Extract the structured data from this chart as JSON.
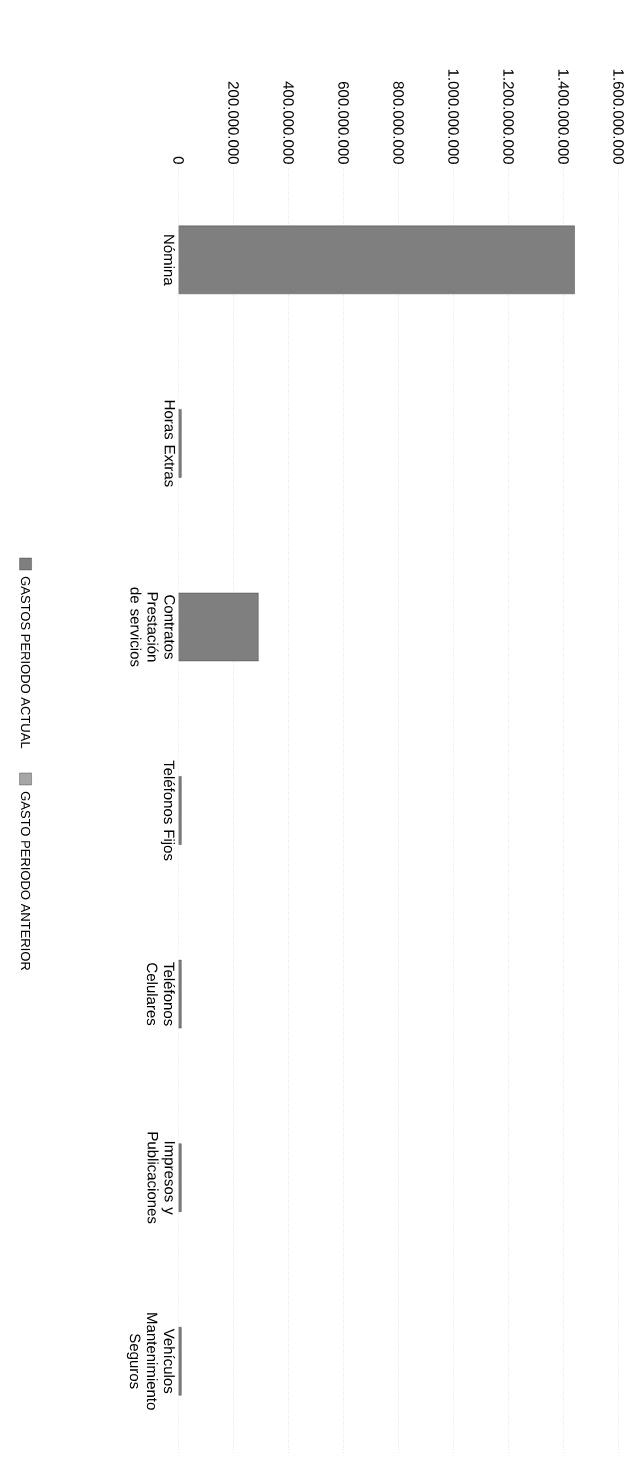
{
  "chart_data": {
    "type": "bar",
    "orientation": "horizontal",
    "categories": [
      "Nómina",
      "Horas Extras",
      "Contratos Prestación de servicios",
      "Teléfonos Fijos",
      "Teléfonos Celulares",
      "Impresos y Publicaciones",
      "Vehículos Mantenimiento Seguros"
    ],
    "series": [
      {
        "name": "GASTOS PERIODO ACTUAL",
        "color": "#7f7f7f",
        "values": [
          1440000000,
          10000000,
          290000000,
          10000000,
          10000000,
          10000000,
          10000000
        ]
      },
      {
        "name": "GASTO PERIODO ANTERIOR",
        "color": "#a6a6a6",
        "values": [
          null,
          null,
          null,
          null,
          null,
          null,
          null
        ]
      }
    ],
    "xlim": [
      0,
      1600000000
    ],
    "xticks": [
      {
        "value": 0,
        "label": "0"
      },
      {
        "value": 200000000,
        "label": "200.000.000"
      },
      {
        "value": 400000000,
        "label": "400.000.000"
      },
      {
        "value": 600000000,
        "label": "600.000.000"
      },
      {
        "value": 800000000,
        "label": "800.000.000"
      },
      {
        "value": 1000000000,
        "label": "1.000.000.000"
      },
      {
        "value": 1200000000,
        "label": "1.200.000.000"
      },
      {
        "value": 1400000000,
        "label": "1.400.000.000"
      },
      {
        "value": 1600000000,
        "label": "1.600.000.000"
      }
    ],
    "grid": "x",
    "legend": "left"
  }
}
